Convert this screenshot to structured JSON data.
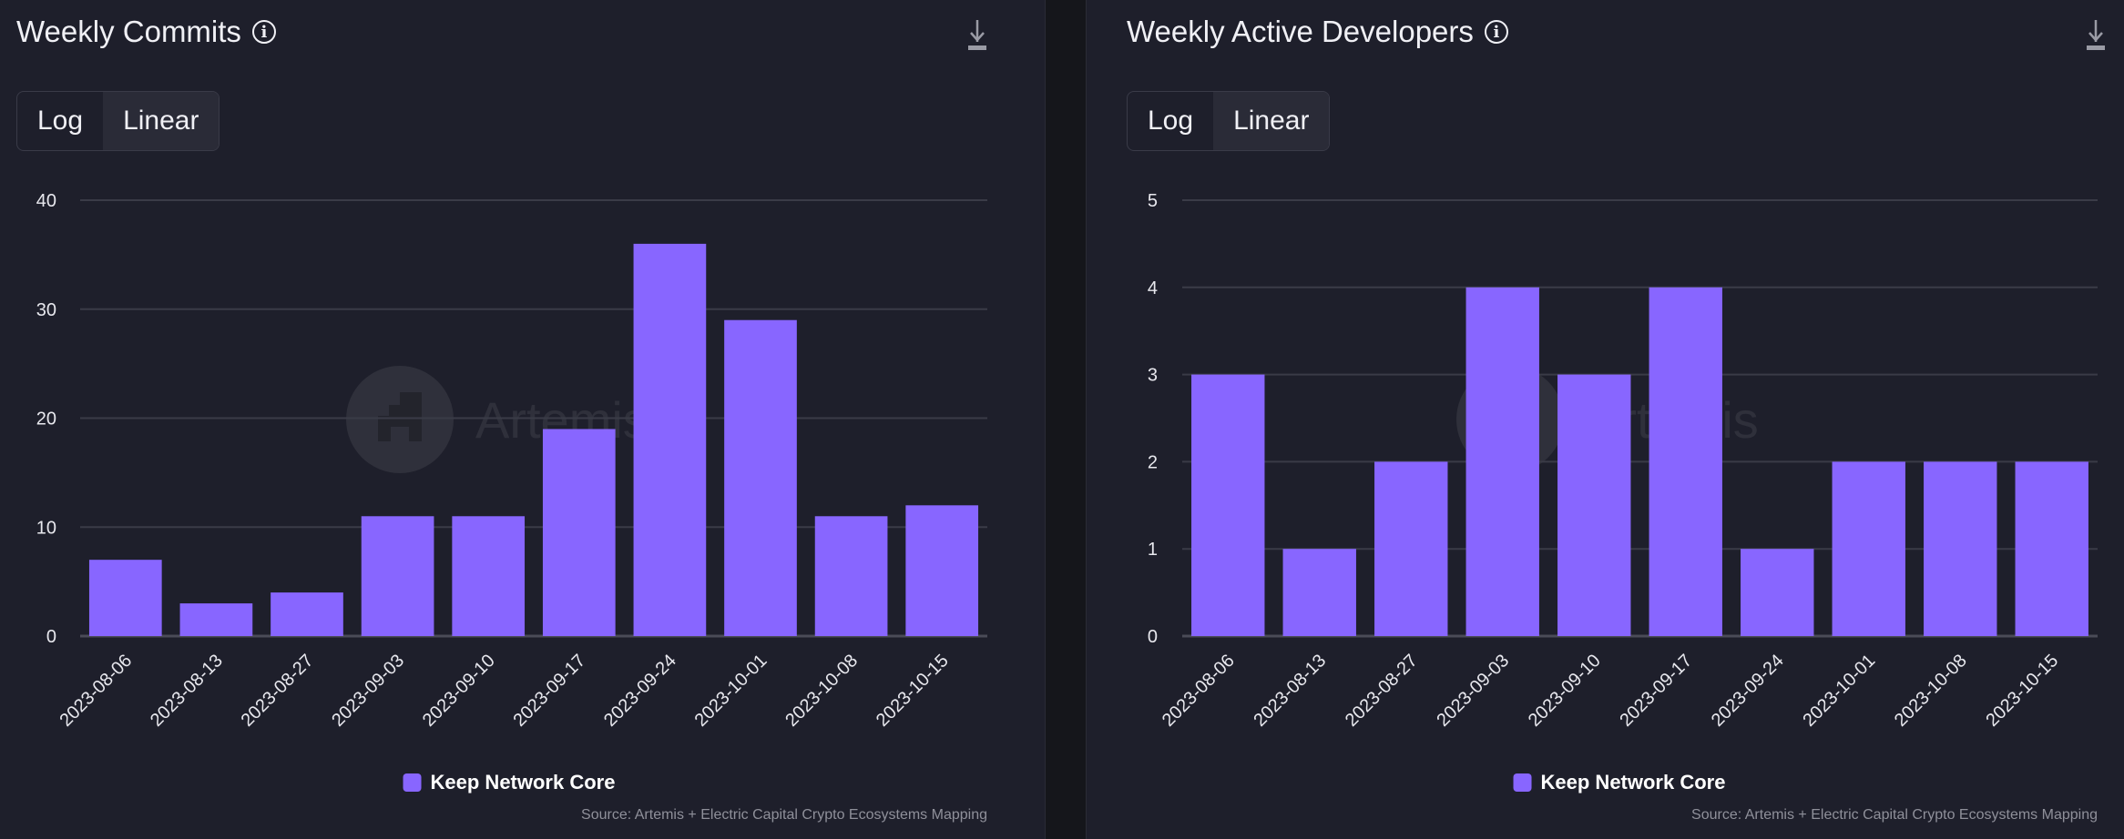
{
  "colors": {
    "bar": "#8866ff",
    "grid": "#3a3b47",
    "background": "#1e1f2b"
  },
  "chart_data": [
    {
      "type": "bar",
      "title": "Weekly Commits",
      "scale_options": [
        "Log",
        "Linear"
      ],
      "selected_scale": "Linear",
      "categories": [
        "2023-08-06",
        "2023-08-13",
        "2023-08-27",
        "2023-09-03",
        "2023-09-10",
        "2023-09-17",
        "2023-09-24",
        "2023-10-01",
        "2023-10-08",
        "2023-10-15"
      ],
      "series": [
        {
          "name": "Keep Network Core",
          "values": [
            7,
            3,
            4,
            11,
            11,
            19,
            36,
            29,
            11,
            12
          ]
        }
      ],
      "ylim": [
        0,
        40
      ],
      "yticks": [
        "0",
        "10",
        "20",
        "30",
        "40"
      ],
      "xlabel": "",
      "ylabel": "",
      "grid": true,
      "legend": "bottom-center",
      "watermark": "Artemis",
      "source": "Source: Artemis + Electric Capital Crypto Ecosystems Mapping"
    },
    {
      "type": "bar",
      "title": "Weekly Active Developers",
      "scale_options": [
        "Log",
        "Linear"
      ],
      "selected_scale": "Linear",
      "categories": [
        "2023-08-06",
        "2023-08-13",
        "2023-08-27",
        "2023-09-03",
        "2023-09-10",
        "2023-09-17",
        "2023-09-24",
        "2023-10-01",
        "2023-10-08",
        "2023-10-15"
      ],
      "series": [
        {
          "name": "Keep Network Core",
          "values": [
            3,
            1,
            2,
            4,
            3,
            4,
            1,
            2,
            2,
            2
          ]
        }
      ],
      "ylim": [
        0,
        5
      ],
      "yticks": [
        "0",
        "1",
        "2",
        "3",
        "4",
        "5"
      ],
      "xlabel": "",
      "ylabel": "",
      "grid": true,
      "legend": "bottom-center",
      "watermark": "Artemis",
      "source": "Source: Artemis + Electric Capital Crypto Ecosystems Mapping"
    }
  ]
}
